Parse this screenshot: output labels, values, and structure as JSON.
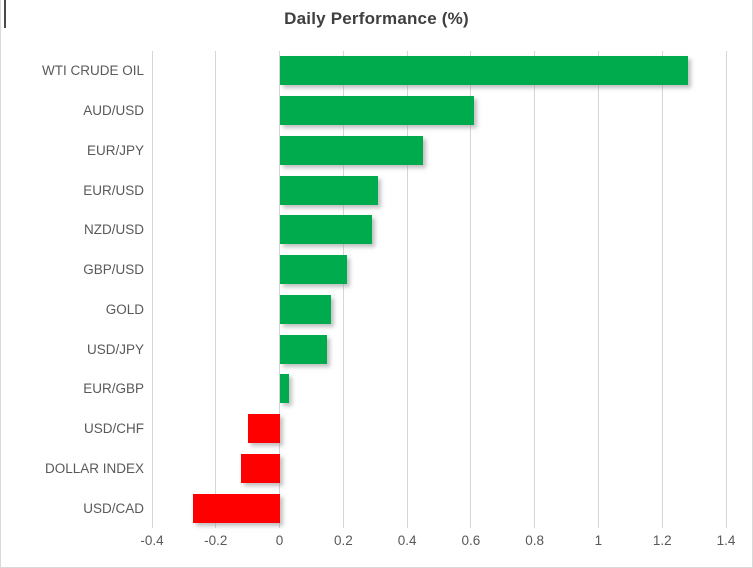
{
  "chart_data": {
    "type": "bar",
    "orientation": "horizontal",
    "title": "Daily Performance (%)",
    "categories": [
      "WTI CRUDE OIL",
      "AUD/USD",
      "EUR/JPY",
      "EUR/USD",
      "NZD/USD",
      "GBP/USD",
      "GOLD",
      "USD/JPY",
      "EUR/GBP",
      "USD/CHF",
      "DOLLAR INDEX",
      "USD/CAD"
    ],
    "values": [
      1.28,
      0.61,
      0.45,
      0.31,
      0.29,
      0.21,
      0.16,
      0.15,
      0.03,
      -0.1,
      -0.12,
      -0.27
    ],
    "xlim": [
      -0.4,
      1.4
    ],
    "x_ticks": [
      -0.4,
      -0.2,
      0,
      0.2,
      0.4,
      0.6,
      0.8,
      1,
      1.2,
      1.4
    ],
    "x_tick_labels": [
      "-0.4",
      "-0.2",
      "0",
      "0.2",
      "0.4",
      "0.6",
      "0.8",
      "1",
      "1.2",
      "1.4"
    ],
    "grid": "vertical-gridlines",
    "legend": "none",
    "xlabel": "",
    "ylabel": "",
    "colors": {
      "positive_bar": "#00AB4E",
      "negative_bar": "#FF0000",
      "gridline": "#D6D6D6",
      "title_text": "#3F3F3F",
      "label_text": "#595959"
    }
  }
}
